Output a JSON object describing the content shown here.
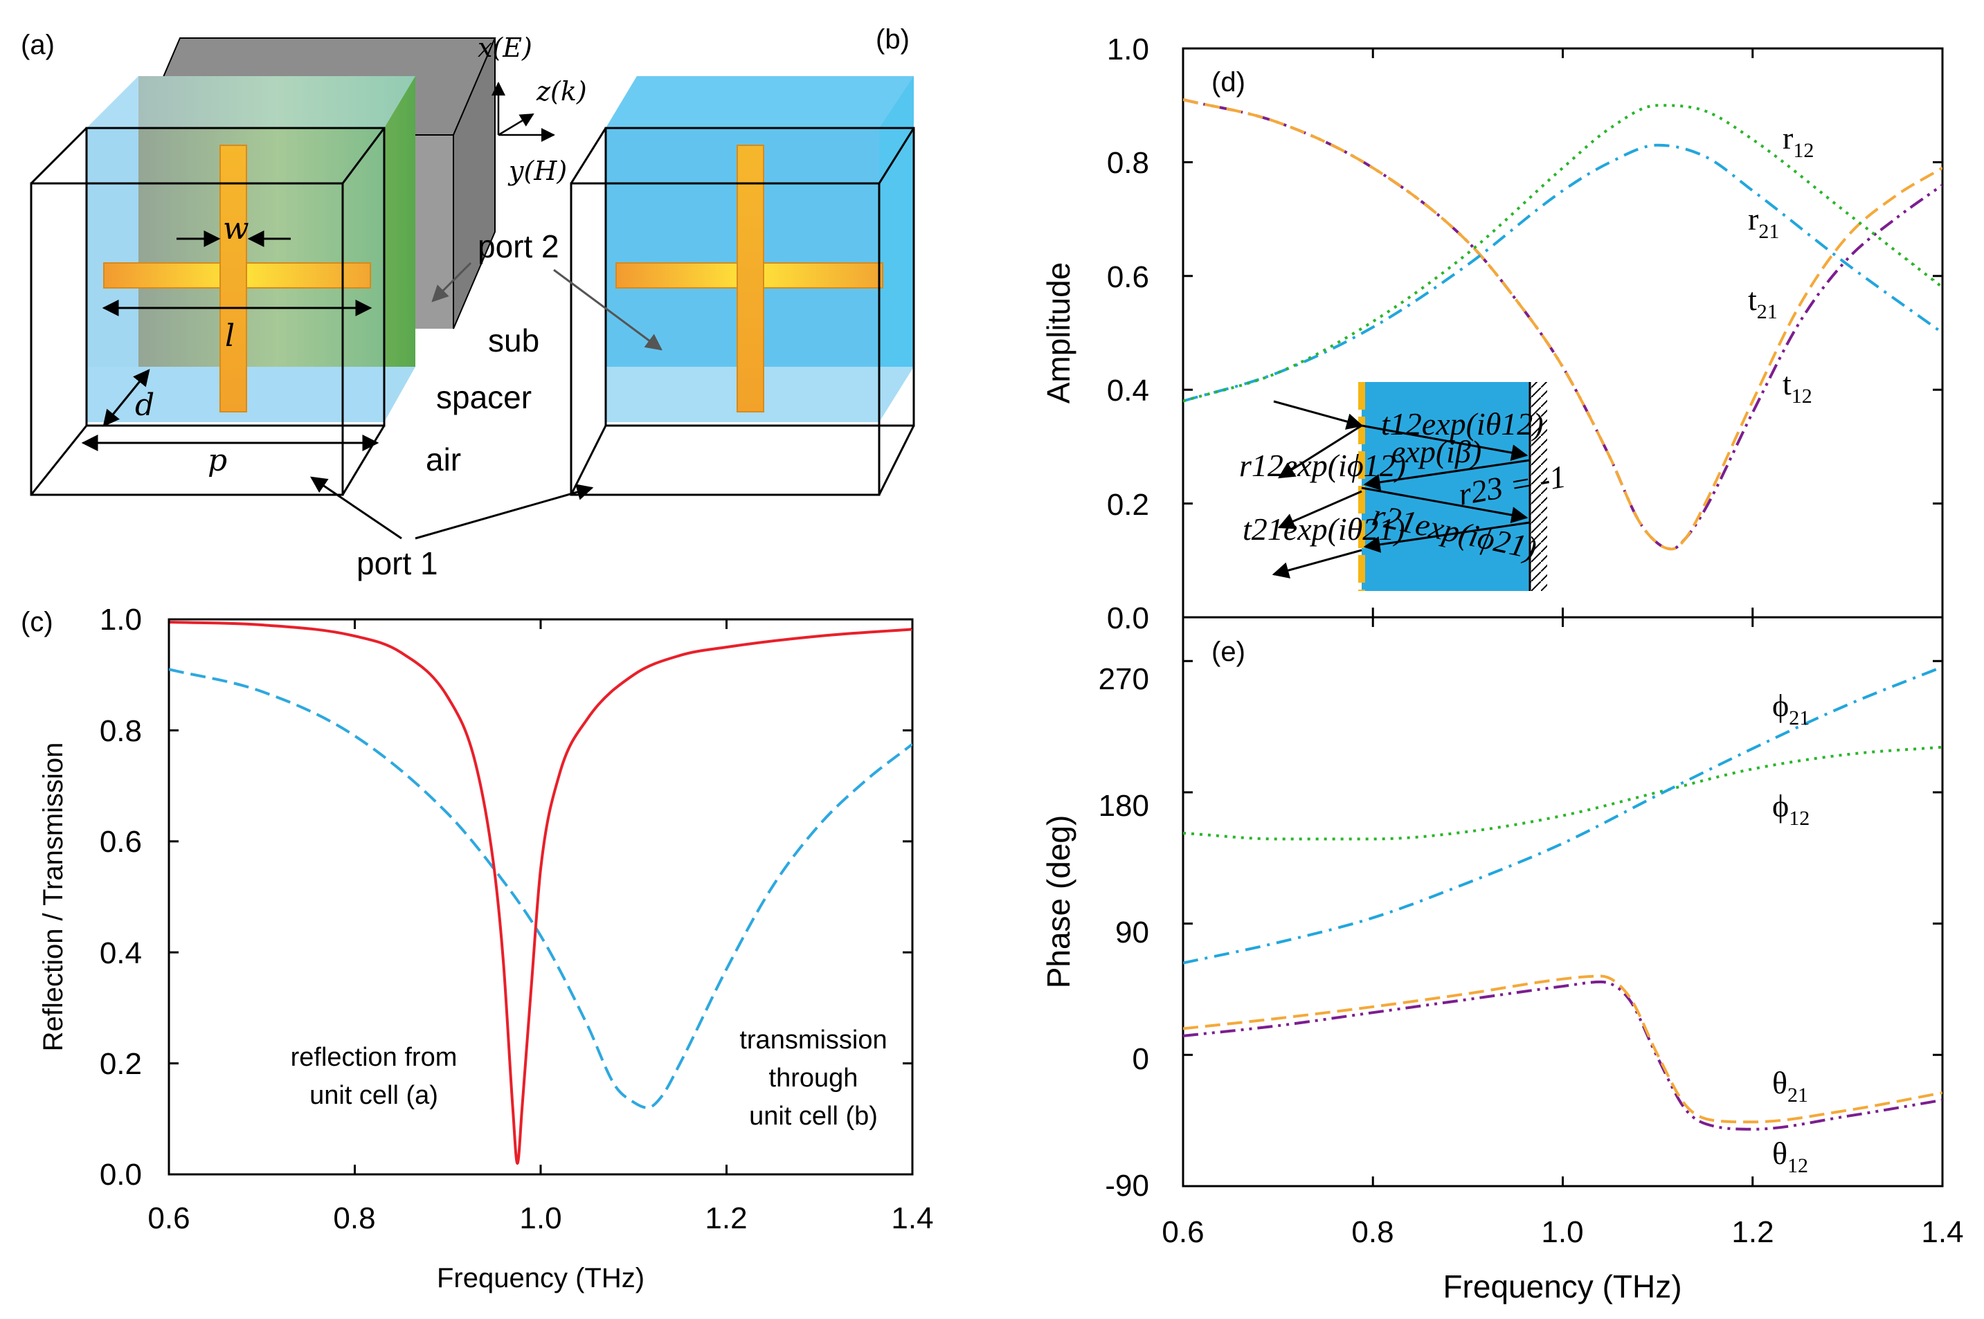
{
  "colors": {
    "reflection": "#e8202a",
    "transmission": "#2ea8df",
    "r12": "#2ab52a",
    "r21": "#22a6dc",
    "t21": "#f4a93a",
    "t12": "#7b1e8f",
    "box_blue": "#8fd0f0",
    "gold": "#f5b515"
  },
  "schematic": {
    "label_a": "(a)",
    "label_b": "(b)",
    "axis_x": "x(E)",
    "axis_z": "z(k)",
    "axis_y": "y(H)",
    "dim_w": "w",
    "dim_l": "l",
    "dim_d": "d",
    "dim_p": "p",
    "port2": "port 2",
    "port1": "port 1",
    "layer_sub": "sub",
    "layer_spacer": "spacer",
    "layer_air": "air"
  },
  "inset": {
    "t12_term": "t12exp(iθ12)",
    "prop_term": "exp(iβ)",
    "r12_term": "r12exp(iϕ12)",
    "r23_term": "r23 = -1",
    "t21_term": "t21exp(iθ21)",
    "r21_term": "r21exp(iϕ21)"
  },
  "chart_data": [
    {
      "panel": "(c)",
      "type": "line",
      "xlabel": "Frequency (THz)",
      "ylabel": "Reflection / Transmission",
      "xlim": [
        0.6,
        1.4
      ],
      "ylim": [
        0.0,
        1.0
      ],
      "xticks": [
        "0.6",
        "0.8",
        "1.0",
        "1.2",
        "1.4"
      ],
      "yticks": [
        "0.0",
        "0.2",
        "0.4",
        "0.6",
        "0.8",
        "1.0"
      ],
      "annotations": {
        "reflection_line1": "reflection from",
        "reflection_line2": "unit cell (a)",
        "transmission_line1": "transmission",
        "transmission_line2": "through",
        "transmission_line3": "unit cell (b)"
      },
      "series": [
        {
          "name": "reflection from unit cell (a)",
          "style": "solid",
          "x": [
            0.6,
            0.7,
            0.8,
            0.85,
            0.9,
            0.93,
            0.95,
            0.96,
            0.97,
            0.975,
            0.98,
            0.99,
            1.0,
            1.02,
            1.05,
            1.1,
            1.15,
            1.2,
            1.3,
            1.4
          ],
          "y": [
            0.995,
            0.99,
            0.97,
            0.94,
            0.86,
            0.74,
            0.55,
            0.38,
            0.12,
            0.02,
            0.12,
            0.34,
            0.55,
            0.72,
            0.82,
            0.9,
            0.935,
            0.95,
            0.97,
            0.982
          ]
        },
        {
          "name": "transmission through unit cell (b)",
          "style": "dashed",
          "x": [
            0.6,
            0.7,
            0.8,
            0.9,
            0.95,
            1.0,
            1.05,
            1.08,
            1.1,
            1.115,
            1.13,
            1.15,
            1.2,
            1.25,
            1.3,
            1.35,
            1.4
          ],
          "y": [
            0.91,
            0.87,
            0.79,
            0.65,
            0.55,
            0.43,
            0.27,
            0.16,
            0.13,
            0.12,
            0.14,
            0.2,
            0.37,
            0.52,
            0.63,
            0.71,
            0.775
          ]
        }
      ]
    },
    {
      "panel": "(d)",
      "type": "line",
      "xlabel": "Frequency (THz)",
      "ylabel": "Amplitude",
      "xlim": [
        0.6,
        1.4
      ],
      "ylim": [
        0.0,
        1.0
      ],
      "xticks": [
        "0.6",
        "0.8",
        "1.0",
        "1.2",
        "1.4"
      ],
      "yticks": [
        "0.0",
        "0.2",
        "0.4",
        "0.6",
        "0.8",
        "1.0"
      ],
      "series": [
        {
          "name": "r12",
          "style": "dotted",
          "x": [
            0.6,
            0.7,
            0.8,
            0.9,
            1.0,
            1.05,
            1.1,
            1.15,
            1.2,
            1.3,
            1.4
          ],
          "y": [
            0.38,
            0.43,
            0.52,
            0.64,
            0.79,
            0.86,
            0.9,
            0.89,
            0.84,
            0.71,
            0.58
          ]
        },
        {
          "name": "r21",
          "style": "dash-dot",
          "x": [
            0.6,
            0.7,
            0.8,
            0.9,
            1.0,
            1.05,
            1.1,
            1.15,
            1.2,
            1.3,
            1.4
          ],
          "y": [
            0.38,
            0.43,
            0.51,
            0.62,
            0.75,
            0.8,
            0.83,
            0.81,
            0.75,
            0.62,
            0.5
          ]
        },
        {
          "name": "t21",
          "style": "dashed",
          "x": [
            0.6,
            0.7,
            0.8,
            0.9,
            0.95,
            1.0,
            1.05,
            1.08,
            1.1,
            1.115,
            1.13,
            1.15,
            1.2,
            1.25,
            1.3,
            1.35,
            1.4
          ],
          "y": [
            0.91,
            0.87,
            0.79,
            0.66,
            0.56,
            0.44,
            0.28,
            0.17,
            0.13,
            0.12,
            0.14,
            0.2,
            0.38,
            0.55,
            0.67,
            0.74,
            0.79
          ]
        },
        {
          "name": "t12",
          "style": "dash-dot-dot",
          "x": [
            0.6,
            0.7,
            0.8,
            0.9,
            0.95,
            1.0,
            1.05,
            1.08,
            1.1,
            1.115,
            1.13,
            1.15,
            1.2,
            1.25,
            1.3,
            1.35,
            1.4
          ],
          "y": [
            0.91,
            0.87,
            0.79,
            0.66,
            0.56,
            0.44,
            0.28,
            0.17,
            0.13,
            0.12,
            0.14,
            0.19,
            0.36,
            0.52,
            0.63,
            0.7,
            0.76
          ]
        }
      ],
      "legend_labels": {
        "r12": "r",
        "r12_sub": "12",
        "r21": "r",
        "r21_sub": "21",
        "t21": "t",
        "t21_sub": "21",
        "t12": "t",
        "t12_sub": "12"
      }
    },
    {
      "panel": "(e)",
      "type": "line",
      "xlabel": "Frequency (THz)",
      "ylabel": "Phase (deg)",
      "xlim": [
        0.6,
        1.4
      ],
      "ylim": [
        -90,
        300
      ],
      "xticks": [
        "0.6",
        "0.8",
        "1.0",
        "1.2",
        "1.4"
      ],
      "yticks": [
        "-90",
        "0",
        "90",
        "180",
        "270"
      ],
      "series": [
        {
          "name": "ϕ21",
          "style": "dash-dot",
          "x": [
            0.6,
            0.7,
            0.8,
            0.9,
            1.0,
            1.1,
            1.2,
            1.3,
            1.4
          ],
          "y": [
            63,
            77,
            94,
            118,
            145,
            178,
            210,
            240,
            266
          ]
        },
        {
          "name": "ϕ12",
          "style": "dotted",
          "x": [
            0.6,
            0.7,
            0.8,
            0.9,
            1.0,
            1.1,
            1.2,
            1.3,
            1.4
          ],
          "y": [
            152,
            148,
            148,
            153,
            164,
            180,
            196,
            206,
            211
          ]
        },
        {
          "name": "θ21",
          "style": "dashed",
          "x": [
            0.6,
            0.7,
            0.8,
            0.9,
            1.0,
            1.04,
            1.07,
            1.1,
            1.13,
            1.16,
            1.2,
            1.3,
            1.4
          ],
          "y": [
            18,
            25,
            33,
            42,
            52,
            54,
            40,
            0,
            -35,
            -45,
            -46,
            -38,
            -26
          ]
        },
        {
          "name": "θ12",
          "style": "dash-dot-dot",
          "x": [
            0.6,
            0.7,
            0.8,
            0.9,
            1.0,
            1.04,
            1.07,
            1.1,
            1.13,
            1.16,
            1.2,
            1.3,
            1.4
          ],
          "y": [
            13,
            20,
            29,
            38,
            47,
            50,
            38,
            -2,
            -38,
            -49,
            -51,
            -42,
            -31
          ]
        }
      ],
      "legend_labels": {
        "phi21": "ϕ",
        "phi21_sub": "21",
        "phi12": "ϕ",
        "phi12_sub": "12",
        "theta21": "θ",
        "theta21_sub": "21",
        "theta12": "θ",
        "theta12_sub": "12"
      }
    }
  ]
}
